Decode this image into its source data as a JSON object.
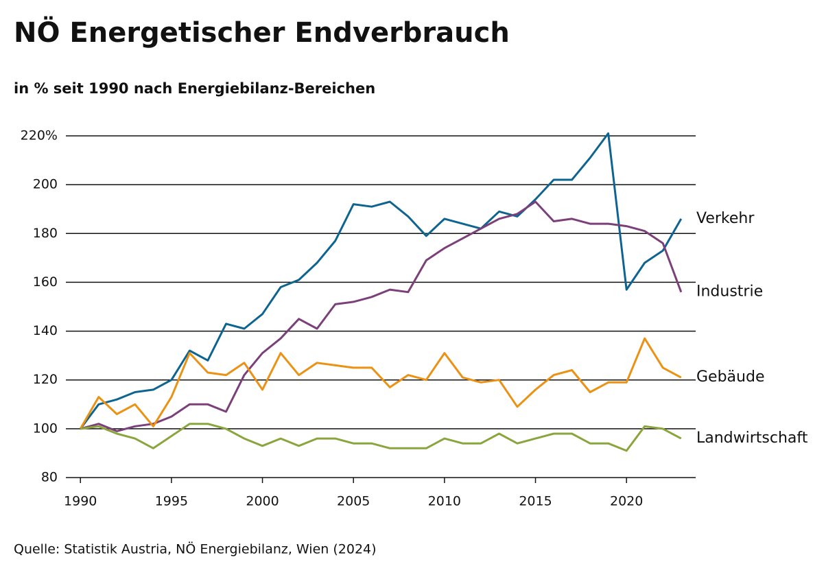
{
  "chart_data": {
    "type": "line",
    "title": "NÖ Energetischer Endverbrauch",
    "subtitle": "in % seit 1990 nach Energiebilanz-Bereichen",
    "source": "Quelle: Statistik Austria, NÖ Energiebilanz, Wien (2024)",
    "x": [
      1990,
      1991,
      1992,
      1993,
      1994,
      1995,
      1996,
      1997,
      1998,
      1999,
      2000,
      2001,
      2002,
      2003,
      2004,
      2005,
      2006,
      2007,
      2008,
      2009,
      2010,
      2011,
      2012,
      2013,
      2014,
      2015,
      2016,
      2017,
      2018,
      2019,
      2020,
      2021,
      2022,
      2023
    ],
    "series": [
      {
        "name": "Verkehr",
        "color": "#0e6491",
        "values": [
          100,
          110,
          112,
          115,
          116,
          120,
          132,
          128,
          143,
          141,
          147,
          158,
          161,
          168,
          177,
          192,
          191,
          193,
          187,
          179,
          186,
          184,
          182,
          189,
          187,
          194,
          202,
          202,
          211,
          221,
          157,
          168,
          173,
          186
        ]
      },
      {
        "name": "Industrie",
        "color": "#7b3f7a",
        "values": [
          100,
          102,
          99,
          101,
          102,
          105,
          110,
          110,
          107,
          122,
          131,
          137,
          145,
          141,
          151,
          152,
          154,
          157,
          156,
          169,
          174,
          178,
          182,
          186,
          188,
          193,
          185,
          186,
          184,
          184,
          183,
          181,
          176,
          156
        ]
      },
      {
        "name": "Gebäude",
        "color": "#eb9114",
        "values": [
          100,
          113,
          106,
          110,
          101,
          113,
          131,
          123,
          122,
          127,
          116,
          131,
          122,
          127,
          126,
          125,
          125,
          117,
          122,
          120,
          131,
          121,
          119,
          120,
          109,
          116,
          122,
          124,
          115,
          119,
          119,
          137,
          125,
          121
        ]
      },
      {
        "name": "Landwirtschaft",
        "color": "#8aa53c",
        "values": [
          100,
          101,
          98,
          96,
          92,
          97,
          102,
          102,
          100,
          96,
          93,
          96,
          93,
          96,
          96,
          94,
          94,
          92,
          92,
          92,
          96,
          94,
          94,
          98,
          94,
          96,
          98,
          98,
          94,
          94,
          91,
          101,
          100,
          96
        ]
      }
    ],
    "xlim": [
      1989.2,
      2023.8
    ],
    "xticks": [
      1990,
      1995,
      2000,
      2005,
      2010,
      2015,
      2020
    ],
    "ylim": [
      80,
      220
    ],
    "yticks": [
      80,
      100,
      120,
      140,
      160,
      180,
      200,
      {
        "value": 220,
        "label": "220%"
      }
    ],
    "grid": true
  }
}
